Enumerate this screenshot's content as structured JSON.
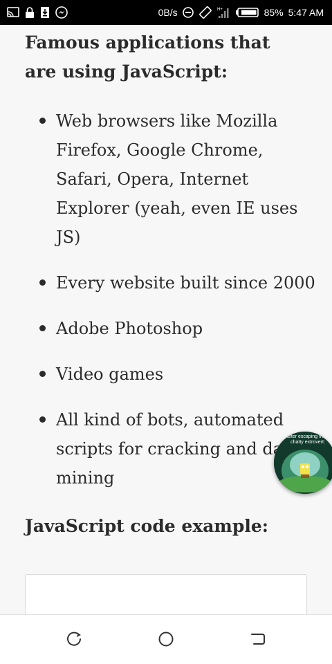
{
  "status_bar": {
    "speed": "0B/s",
    "battery_percent": "85%",
    "time": "5:47 AM",
    "left_icons": [
      "cast-icon",
      "lock-icon",
      "download-icon",
      "messenger-icon"
    ],
    "right_icons": [
      "do-not-disturb-icon",
      "screen-rotation-icon",
      "signal-icon",
      "battery-icon"
    ]
  },
  "article": {
    "apps_heading": "Famous applications that are using JavaScript:",
    "apps": [
      "Web browsers like Mozilla Firefox, Google Chrome, Safari, Opera, Internet Explorer (yeah, even IE uses JS)",
      "Every website built since 2000",
      "Adobe Photoshop",
      "Video games",
      "All kind of bots, automated scripts for cracking and data mining"
    ],
    "code_heading": "JavaScript code example:"
  },
  "floating_bubble": {
    "caption": "after escaping from chatty extrovert:"
  },
  "nav_bar": {
    "buttons": [
      "recents-button",
      "home-button",
      "back-button"
    ]
  },
  "colors": {
    "status_bar_bg": "#000000",
    "page_bg": "#f7f7f7",
    "text": "#2b2b2b"
  }
}
